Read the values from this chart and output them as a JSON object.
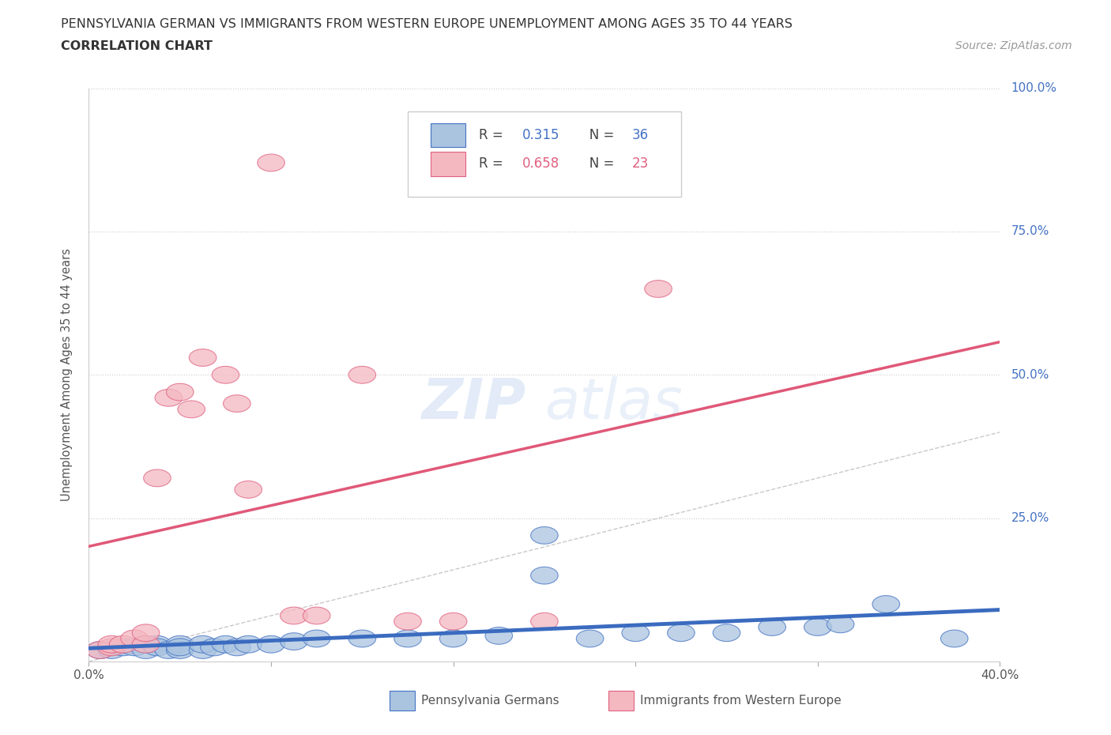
{
  "title_line1": "PENNSYLVANIA GERMAN VS IMMIGRANTS FROM WESTERN EUROPE UNEMPLOYMENT AMONG AGES 35 TO 44 YEARS",
  "title_line2": "CORRELATION CHART",
  "source": "Source: ZipAtlas.com",
  "ylabel": "Unemployment Among Ages 35 to 44 years",
  "xmin": 0.0,
  "xmax": 0.4,
  "ymin": 0.0,
  "ymax": 1.0,
  "blue_scatter_x": [
    0.005,
    0.01,
    0.015,
    0.02,
    0.025,
    0.025,
    0.03,
    0.03,
    0.035,
    0.04,
    0.04,
    0.04,
    0.05,
    0.05,
    0.055,
    0.06,
    0.065,
    0.07,
    0.08,
    0.09,
    0.1,
    0.12,
    0.14,
    0.16,
    0.18,
    0.2,
    0.2,
    0.22,
    0.24,
    0.26,
    0.28,
    0.3,
    0.32,
    0.33,
    0.35,
    0.38
  ],
  "blue_scatter_y": [
    0.02,
    0.02,
    0.025,
    0.025,
    0.03,
    0.02,
    0.03,
    0.025,
    0.02,
    0.03,
    0.02,
    0.025,
    0.02,
    0.03,
    0.025,
    0.03,
    0.025,
    0.03,
    0.03,
    0.035,
    0.04,
    0.04,
    0.04,
    0.04,
    0.045,
    0.22,
    0.15,
    0.04,
    0.05,
    0.05,
    0.05,
    0.06,
    0.06,
    0.065,
    0.1,
    0.04
  ],
  "pink_scatter_x": [
    0.005,
    0.01,
    0.01,
    0.015,
    0.02,
    0.025,
    0.025,
    0.03,
    0.035,
    0.04,
    0.045,
    0.05,
    0.06,
    0.065,
    0.07,
    0.08,
    0.09,
    0.1,
    0.12,
    0.14,
    0.16,
    0.2,
    0.25
  ],
  "pink_scatter_y": [
    0.02,
    0.025,
    0.03,
    0.03,
    0.04,
    0.03,
    0.05,
    0.32,
    0.46,
    0.47,
    0.44,
    0.53,
    0.5,
    0.45,
    0.3,
    0.87,
    0.08,
    0.08,
    0.5,
    0.07,
    0.07,
    0.07,
    0.65
  ],
  "blue_color": "#aac4e0",
  "pink_color": "#f4b8c1",
  "blue_edge_color": "#4472c4",
  "pink_edge_color": "#e06080",
  "blue_line_color": "#3a6bbf",
  "pink_line_color": "#e05878",
  "R_blue": 0.315,
  "N_blue": 36,
  "R_pink": 0.658,
  "N_pink": 23,
  "background_color": "#ffffff",
  "grid_color": "#cccccc",
  "title_color": "#333333",
  "right_tick_color": "#4472c4",
  "watermark_color": "#c8d8f0"
}
